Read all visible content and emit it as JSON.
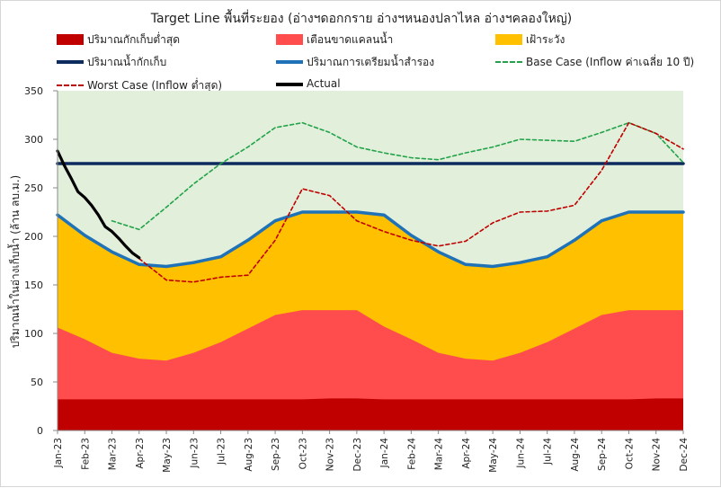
{
  "chart_data": {
    "type": "area",
    "title": "Target Line พื้นที่ระยอง (อ่างฯดอกกราย อ่างฯหนองปลาไหล อ่างฯคลองใหญ่)",
    "ylabel": "ปริมาณน้ำในอ่างเก็บน้ำ (ล้าน ลบ.ม.)",
    "xlabel": "",
    "ylim": [
      0,
      350
    ],
    "yticks": [
      0,
      50,
      100,
      150,
      200,
      250,
      300,
      350
    ],
    "grid": false,
    "categories": [
      "Jan-23",
      "Feb-23",
      "Mar-23",
      "Apr-23",
      "May-23",
      "Jun-23",
      "Jul-23",
      "Aug-23",
      "Sep-23",
      "Oct-23",
      "Nov-23",
      "Dec-23",
      "Jan-24",
      "Feb-24",
      "Mar-24",
      "Apr-24",
      "May-24",
      "Jun-24",
      "Jul-24",
      "Aug-24",
      "Sep-24",
      "Oct-24",
      "Nov-24",
      "Dec-24"
    ],
    "stacked_areas": [
      {
        "name": "ปริมาณกักเก็บต่ำสุด",
        "color": "#c00000",
        "values": [
          32,
          32,
          32,
          32,
          32,
          32,
          32,
          32,
          32,
          32,
          33,
          33,
          32,
          32,
          32,
          32,
          32,
          32,
          32,
          32,
          32,
          32,
          33,
          33
        ]
      },
      {
        "name": "เตือนขาดแคลนน้ำ",
        "color": "#ff4d4d",
        "values": [
          106,
          94,
          80,
          74,
          72,
          80,
          91,
          105,
          119,
          124,
          124,
          124,
          107,
          94,
          80,
          74,
          72,
          80,
          91,
          105,
          119,
          124,
          124,
          124
        ]
      },
      {
        "name": "เฝ้าระวัง",
        "color": "#ffc000",
        "values": [
          222,
          201,
          184,
          171,
          169,
          173,
          179,
          196,
          216,
          225,
          225,
          225,
          222,
          201,
          184,
          171,
          169,
          173,
          179,
          196,
          216,
          225,
          225,
          225
        ]
      }
    ],
    "series": [
      {
        "name": "ปริมาณน้ำกักเก็บ",
        "style": "solid",
        "color": "#0d2b5e",
        "values": [
          275,
          275,
          275,
          275,
          275,
          275,
          275,
          275,
          275,
          275,
          275,
          275,
          275,
          275,
          275,
          275,
          275,
          275,
          275,
          275,
          275,
          275,
          275,
          275
        ]
      },
      {
        "name": "ปริมาณการเตรียมน้ำสำรอง",
        "style": "solid",
        "color": "#1f72b8",
        "values": [
          222,
          201,
          184,
          171,
          169,
          173,
          179,
          196,
          216,
          225,
          225,
          225,
          222,
          201,
          184,
          171,
          169,
          173,
          179,
          196,
          216,
          225,
          225,
          225
        ]
      },
      {
        "name": "Base Case (Inflow ค่าเฉลี่ย 10 ปี)",
        "style": "dashed",
        "color": "#22a34a",
        "x": [
          2,
          3,
          4,
          5,
          6,
          7,
          8,
          9,
          10,
          11,
          12,
          13,
          14,
          15,
          16,
          17,
          18,
          19,
          20,
          21,
          22,
          23
        ],
        "values": [
          216,
          207,
          230,
          254,
          275,
          292,
          312,
          317,
          307,
          292,
          286,
          281,
          279,
          286,
          292,
          300,
          299,
          298,
          307,
          317,
          306,
          276
        ]
      },
      {
        "name": "Worst Case (Inflow ต่ำสุด)",
        "style": "dashed",
        "color": "#c00000",
        "x": [
          3,
          4,
          5,
          6,
          7,
          8,
          9,
          10,
          11,
          12,
          13,
          14,
          15,
          16,
          17,
          18,
          19,
          20,
          21,
          22,
          23
        ],
        "values": [
          177,
          155,
          153,
          158,
          160,
          196,
          249,
          242,
          216,
          205,
          196,
          190,
          195,
          214,
          225,
          226,
          232,
          268,
          317,
          306,
          290
        ]
      },
      {
        "name": "Actual",
        "style": "solid",
        "color": "#000000",
        "x": [
          0,
          0.25,
          0.5,
          0.75,
          1,
          1.25,
          1.5,
          1.75,
          2,
          2.25,
          2.5,
          2.75,
          3
        ],
        "values": [
          288,
          273,
          260,
          246,
          240,
          232,
          222,
          210,
          205,
          198,
          190,
          183,
          178
        ]
      }
    ],
    "legend": [
      {
        "label": "ปริมาณกักเก็บต่ำสุด",
        "kind": "box",
        "color": "#c00000"
      },
      {
        "label": "เตือนขาดแคลนน้ำ",
        "kind": "box",
        "color": "#ff4d4d"
      },
      {
        "label": "เฝ้าระวัง",
        "kind": "box",
        "color": "#ffc000"
      },
      {
        "label": "ปริมาณน้ำกักเก็บ",
        "kind": "line",
        "color": "#0d2b5e"
      },
      {
        "label": "ปริมาณการเตรียมน้ำสำรอง",
        "kind": "line",
        "color": "#1f72b8"
      },
      {
        "label": "Base Case (Inflow ค่าเฉลี่ย 10 ปี)",
        "kind": "dash",
        "color": "#22a34a"
      },
      {
        "label": "Worst Case (Inflow ต่ำสุด)",
        "kind": "dash",
        "color": "#c00000"
      },
      {
        "label": "Actual",
        "kind": "line",
        "color": "#000000"
      }
    ],
    "plot_background": "#e2efda"
  }
}
